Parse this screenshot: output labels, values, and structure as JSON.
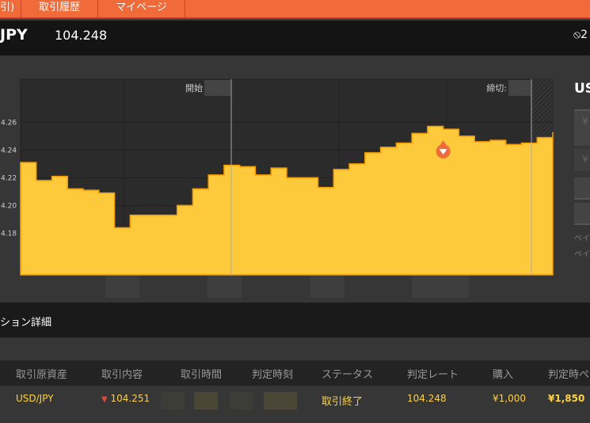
{
  "nav": {
    "items": [
      {
        "label": "引)"
      },
      {
        "label": "取引履歴"
      },
      {
        "label": "マイページ"
      }
    ]
  },
  "header": {
    "pair": "JPY",
    "rate": "104.248",
    "counter_icon": "prohibited-icon",
    "counter": "2"
  },
  "chart_data": {
    "type": "area",
    "y_tick_labels": [
      "4.26",
      "4.24",
      "4.22",
      "4.20",
      "4.18"
    ],
    "yticks": [
      104.26,
      104.24,
      104.22,
      104.2,
      104.18
    ],
    "ylim": [
      104.15,
      104.291
    ],
    "grid": true,
    "values": [
      104.231,
      104.218,
      104.221,
      104.212,
      104.211,
      104.209,
      104.184,
      104.193,
      104.193,
      104.193,
      104.2,
      104.212,
      104.222,
      104.229,
      104.228,
      104.222,
      104.227,
      104.22,
      104.22,
      104.213,
      104.226,
      104.23,
      104.238,
      104.242,
      104.245,
      104.252,
      104.257,
      104.255,
      104.25,
      104.246,
      104.247,
      104.244,
      104.245,
      104.249,
      104.253
    ],
    "start_label": "開始",
    "close_label": "締切:",
    "entry_marker_index": 27,
    "fill_color": "#ffc93c",
    "line_color": "#f59a00",
    "marker_color": "#f06a3a"
  },
  "right_panel": {
    "title": "US",
    "btn1": "¥",
    "btn2": "¥",
    "note1": "ペイ",
    "note2": "ペイ"
  },
  "section": {
    "title": "ション詳細"
  },
  "table": {
    "headers": [
      "取引原資産",
      "取引内容",
      "取引時間",
      "判定時刻",
      "ステータス",
      "判定レート",
      "購入",
      "判定時ペ"
    ],
    "row": {
      "asset": "USD/JPY",
      "direction_icon": "low-arrow-icon",
      "content": "104.251",
      "status": "取引終了",
      "rate": "104.248",
      "purchase": "¥1,000",
      "payout": "¥1,850"
    }
  }
}
